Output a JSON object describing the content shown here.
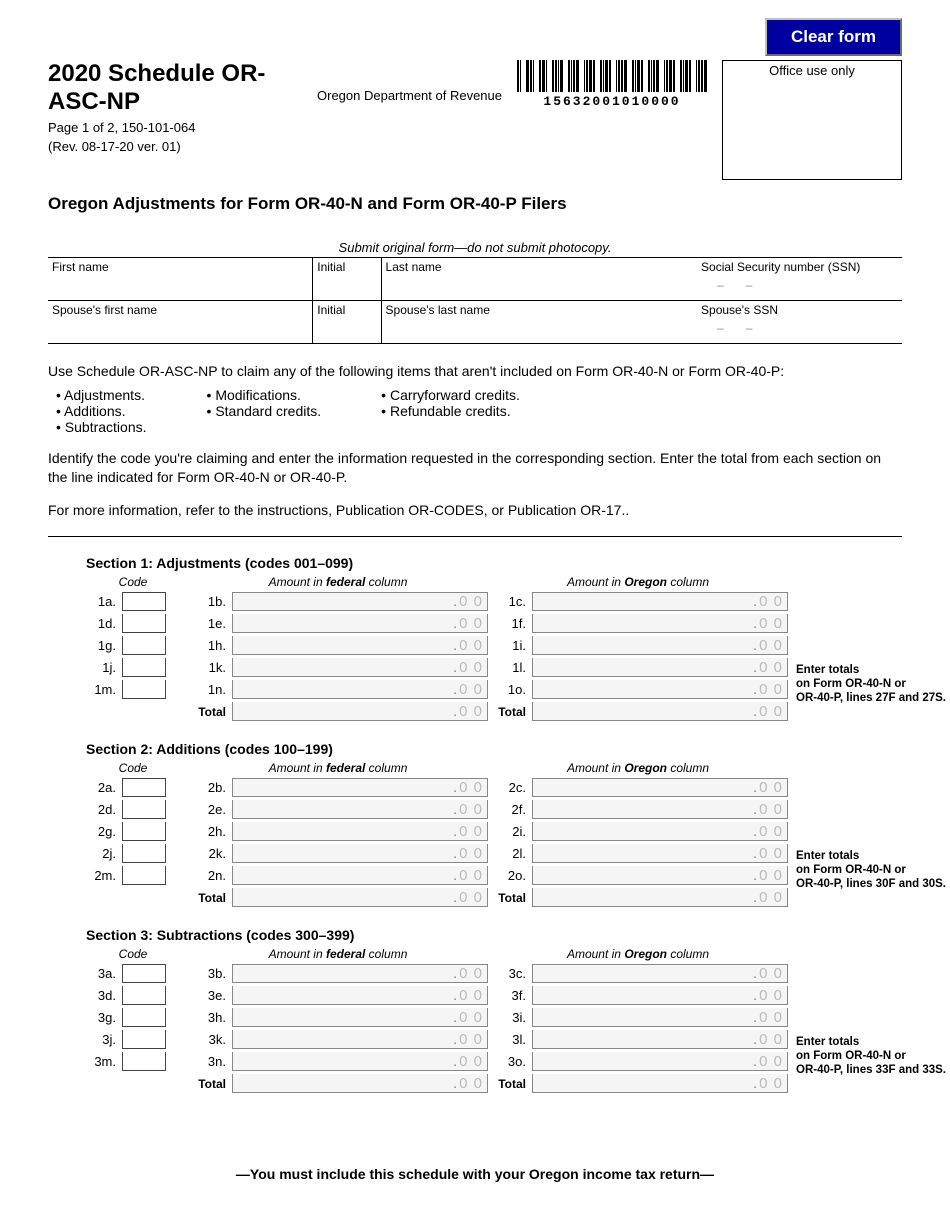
{
  "buttons": {
    "clear": "Clear form"
  },
  "header": {
    "title": "2020 Schedule OR-ASC-NP",
    "page_line": "Page 1 of 2, 150-101-064",
    "rev_line": "(Rev. 08-17-20 ver. 01)",
    "department": "Oregon Department of Revenue",
    "barcode_number": "15632001010000",
    "office_use": "Office use only",
    "subtitle": "Oregon Adjustments for Form OR-40-N and Form OR-40-P Filers",
    "submit_note": "Submit original form—do not submit photocopy."
  },
  "id_fields": {
    "first_name": "First name",
    "initial": "Initial",
    "last_name": "Last name",
    "ssn": "Social Security number (SSN)",
    "sp_first": "Spouse's first name",
    "sp_initial": "Initial",
    "sp_last": "Spouse's last name",
    "sp_ssn": "Spouse's SSN"
  },
  "intro": {
    "lead": "Use Schedule OR-ASC-NP to claim any of the following items that aren't included on Form OR-40-N or Form OR-40-P:",
    "col1": [
      "Adjustments.",
      "Additions.",
      "Subtractions."
    ],
    "col2": [
      "Modifications.",
      "Standard credits."
    ],
    "col3": [
      "Carryforward credits.",
      "Refundable credits."
    ],
    "para2": "Identify the code you're claiming and enter the information requested in the corresponding section. Enter the total from each section on the line indicated for Form OR-40-N or OR-40-P.",
    "para3": "For more information, refer to the instructions, Publication OR-CODES, or Publication OR-17.."
  },
  "column_headers": {
    "code": "Code",
    "federal_pre": "Amount in ",
    "federal_b": "federal",
    "federal_post": " column",
    "oregon_pre": "Amount in ",
    "oregon_b": "Oregon",
    "oregon_post": " column",
    "total": "Total"
  },
  "cents_placeholder": "0 0",
  "sections": [
    {
      "title": "Section 1: Adjustments (codes 001–099)",
      "code_labels": [
        "1a.",
        "1d.",
        "1g.",
        "1j.",
        "1m."
      ],
      "fed_labels": [
        "1b.",
        "1e.",
        "1h.",
        "1k.",
        "1n."
      ],
      "ore_labels": [
        "1c.",
        "1f.",
        "1i.",
        "1l.",
        "1o."
      ],
      "note_l1": "Enter totals",
      "note_l2": "on Form OR-40-N or",
      "note_l3": "OR-40-P, lines 27F and 27S."
    },
    {
      "title": "Section 2: Additions (codes 100–199)",
      "code_labels": [
        "2a.",
        "2d.",
        "2g.",
        "2j.",
        "2m."
      ],
      "fed_labels": [
        "2b.",
        "2e.",
        "2h.",
        "2k.",
        "2n."
      ],
      "ore_labels": [
        "2c.",
        "2f.",
        "2i.",
        "2l.",
        "2o."
      ],
      "note_l1": "Enter totals",
      "note_l2": "on Form OR-40-N or",
      "note_l3": "OR-40-P, lines 30F and 30S."
    },
    {
      "title": "Section 3: Subtractions (codes 300–399)",
      "code_labels": [
        "3a.",
        "3d.",
        "3g.",
        "3j.",
        "3m."
      ],
      "fed_labels": [
        "3b.",
        "3e.",
        "3h.",
        "3k.",
        "3n."
      ],
      "ore_labels": [
        "3c.",
        "3f.",
        "3i.",
        "3l.",
        "3o."
      ],
      "note_l1": "Enter totals",
      "note_l2": "on Form OR-40-N or",
      "note_l3": "OR-40-P, lines 33F and 33S."
    }
  ],
  "footer": "—You must include this schedule with your Oregon income tax return—"
}
